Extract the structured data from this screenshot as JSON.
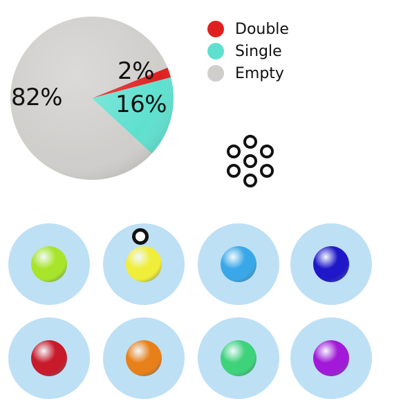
{
  "chart_data": {
    "type": "pie",
    "slices": [
      {
        "name": "Double",
        "value": 2,
        "label": "2%",
        "color": "#e02020"
      },
      {
        "name": "Single",
        "value": 16,
        "label": "16%",
        "color": "#5fe0cf"
      },
      {
        "name": "Empty",
        "value": 82,
        "label": "82%",
        "color": "#cfcecb"
      }
    ],
    "legend": {
      "placement": "top-right"
    }
  },
  "droplets": {
    "rows": [
      [
        {
          "bead_color": "#a8e52a"
        },
        {
          "bead_color": "#f0ee3a",
          "marker": true
        },
        {
          "bead_color": "#3aa8e8"
        },
        {
          "bead_color": "#2018c8"
        }
      ],
      [
        {
          "bead_color": "#c81a2a"
        },
        {
          "bead_color": "#e8801a"
        },
        {
          "bead_color": "#3ed27a"
        },
        {
          "bead_color": "#a21ad8"
        }
      ]
    ],
    "background_color": "#bde0f5"
  },
  "cluster": {
    "icon": "bead-cluster-icon",
    "count": 7
  }
}
